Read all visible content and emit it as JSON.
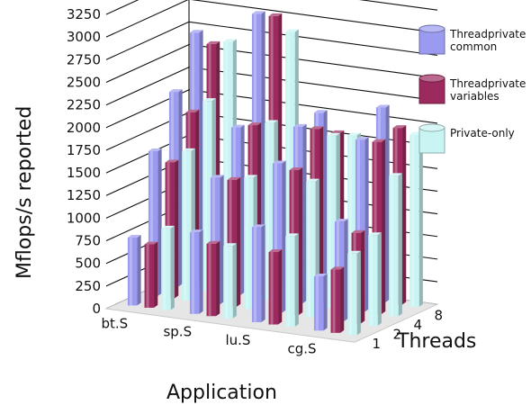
{
  "chart_data": {
    "type": "bar",
    "variant": "3d-grouped-bar",
    "ylabel": "Mflops/s reported",
    "xlabel": "Application",
    "zlabel": "Threads",
    "ylim": [
      0,
      3250
    ],
    "yticks": [
      0,
      250,
      500,
      750,
      1000,
      1250,
      1500,
      1750,
      2000,
      2250,
      2500,
      2750,
      3000,
      3250
    ],
    "categories": [
      "bt.S",
      "sp.S",
      "lu.S",
      "cg.S"
    ],
    "threads": [
      "1",
      "2",
      "4",
      "8"
    ],
    "grid": true,
    "legend_position": "right",
    "series": [
      {
        "name": "Threadprivate common",
        "color": "#9a9af0",
        "values": [
          [
            750,
            1600,
            2150,
            2700
          ],
          [
            900,
            1400,
            1850,
            3000
          ],
          [
            1050,
            1650,
            1950,
            2000
          ],
          [
            600,
            1100,
            1900,
            2150
          ]
        ]
      },
      {
        "name": "Threadprivate variables",
        "color": "#9c2a5e",
        "values": [
          [
            700,
            1500,
            1950,
            2600
          ],
          [
            800,
            1400,
            1900,
            3000
          ],
          [
            800,
            1600,
            1950,
            1800
          ],
          [
            700,
            1000,
            1900,
            1950
          ]
        ]
      },
      {
        "name": "Private-only",
        "color": "#c8f4f4",
        "values": [
          [
            900,
            1650,
            2100,
            2650
          ],
          [
            800,
            1450,
            1950,
            2850
          ],
          [
            1000,
            1500,
            1900,
            1800
          ],
          [
            900,
            1000,
            1550,
            1900
          ]
        ]
      }
    ],
    "legend_labels": [
      [
        "Threadprivate",
        "common"
      ],
      [
        "Threadprivate",
        "variables"
      ],
      [
        "Private-only"
      ]
    ]
  }
}
